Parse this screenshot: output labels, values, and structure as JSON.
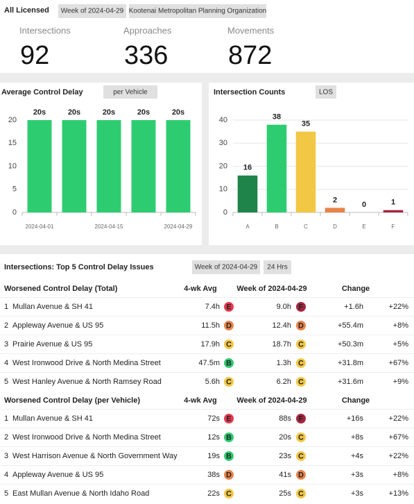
{
  "header": {
    "title": "All Licensed",
    "buttons": [
      "Week of 2024-04-29",
      "Kootenai Metropolitan Planning Organization"
    ]
  },
  "kpis": [
    {
      "label": "Intersections",
      "value": 92
    },
    {
      "label": "Approaches",
      "value": 336
    },
    {
      "label": "Movements",
      "value": 872
    }
  ],
  "chart_data": [
    {
      "type": "bar",
      "title": "Average Control Delay",
      "button": "per Vehicle",
      "categories": [
        "2024-04-01",
        null,
        "2024-04-15",
        null,
        "2024-04-29"
      ],
      "values": [
        20,
        20,
        20,
        20,
        20
      ],
      "value_labels": [
        "20s",
        "20s",
        "20s",
        "20s",
        "20s"
      ],
      "color": "#2ecc71",
      "ylim": [
        0,
        20
      ],
      "yticks": [
        0,
        5,
        10,
        15,
        20
      ],
      "grid": false
    },
    {
      "type": "bar",
      "title": "Intersection Counts",
      "button": "LOS",
      "categories": [
        "A",
        "B",
        "C",
        "D",
        "E",
        "F"
      ],
      "values": [
        16,
        38,
        35,
        2,
        0,
        1
      ],
      "colors": [
        "#1e8449",
        "#2ecc71",
        "#f2c744",
        "#e8834a",
        "#e8384f",
        "#a3253d"
      ],
      "ylim": [
        0,
        40
      ],
      "yticks": [
        0,
        10,
        20,
        30,
        40
      ],
      "grid": true
    }
  ],
  "table": {
    "title": "Intersections: Top 5 Control Delay Issues",
    "buttons": [
      "Week of 2024-04-29",
      "24 Hrs"
    ],
    "sections": [
      {
        "title": "Worsened Control Delay (Total)",
        "columns": [
          "4-wk Avg",
          "Week of 2024-04-29",
          "Change"
        ],
        "rows": [
          {
            "rank": 1,
            "name": "Mullan Avenue & SH 41",
            "avg": "7.4h",
            "avg_los": "E",
            "week": "9.0h",
            "week_los": "F",
            "change": "+1.6h",
            "pct": "+22%"
          },
          {
            "rank": 2,
            "name": "Appleway Avenue & US 95",
            "avg": "11.5h",
            "avg_los": "D",
            "week": "12.4h",
            "week_los": "D",
            "change": "+55.4m",
            "pct": "+8%"
          },
          {
            "rank": 3,
            "name": "Prairie Avenue & US 95",
            "avg": "17.9h",
            "avg_los": "C",
            "week": "18.7h",
            "week_los": "C",
            "change": "+50.3m",
            "pct": "+5%"
          },
          {
            "rank": 4,
            "name": "West Ironwood Drive & North Medina Street",
            "avg": "47.5m",
            "avg_los": "B",
            "week": "1.3h",
            "week_los": "C",
            "change": "+31.8m",
            "pct": "+67%"
          },
          {
            "rank": 5,
            "name": "West Hanley Avenue & North Ramsey Road",
            "avg": "5.6h",
            "avg_los": "C",
            "week": "6.2h",
            "week_los": "C",
            "change": "+31.6m",
            "pct": "+9%"
          }
        ]
      },
      {
        "title": "Worsened Control Delay (per Vehicle)",
        "columns": [
          "4-wk Avg",
          "Week of 2024-04-29",
          "Change"
        ],
        "rows": [
          {
            "rank": 1,
            "name": "Mullan Avenue & SH 41",
            "avg": "72s",
            "avg_los": "E",
            "week": "88s",
            "week_los": "F",
            "change": "+16s",
            "pct": "+22%"
          },
          {
            "rank": 2,
            "name": "West Ironwood Drive & North Medina Street",
            "avg": "12s",
            "avg_los": "B",
            "week": "20s",
            "week_los": "C",
            "change": "+8s",
            "pct": "+67%"
          },
          {
            "rank": 3,
            "name": "West Harrison Avenue & North Government Way",
            "avg": "19s",
            "avg_los": "B",
            "week": "23s",
            "week_los": "C",
            "change": "+4s",
            "pct": "+22%"
          },
          {
            "rank": 4,
            "name": "Appleway Avenue & US 95",
            "avg": "38s",
            "avg_los": "D",
            "week": "41s",
            "week_los": "D",
            "change": "+3s",
            "pct": "+8%"
          },
          {
            "rank": 5,
            "name": "East Mullan Avenue & North Idaho Road",
            "avg": "22s",
            "avg_los": "C",
            "week": "25s",
            "week_los": "C",
            "change": "+3s",
            "pct": "+13%"
          }
        ]
      }
    ]
  }
}
